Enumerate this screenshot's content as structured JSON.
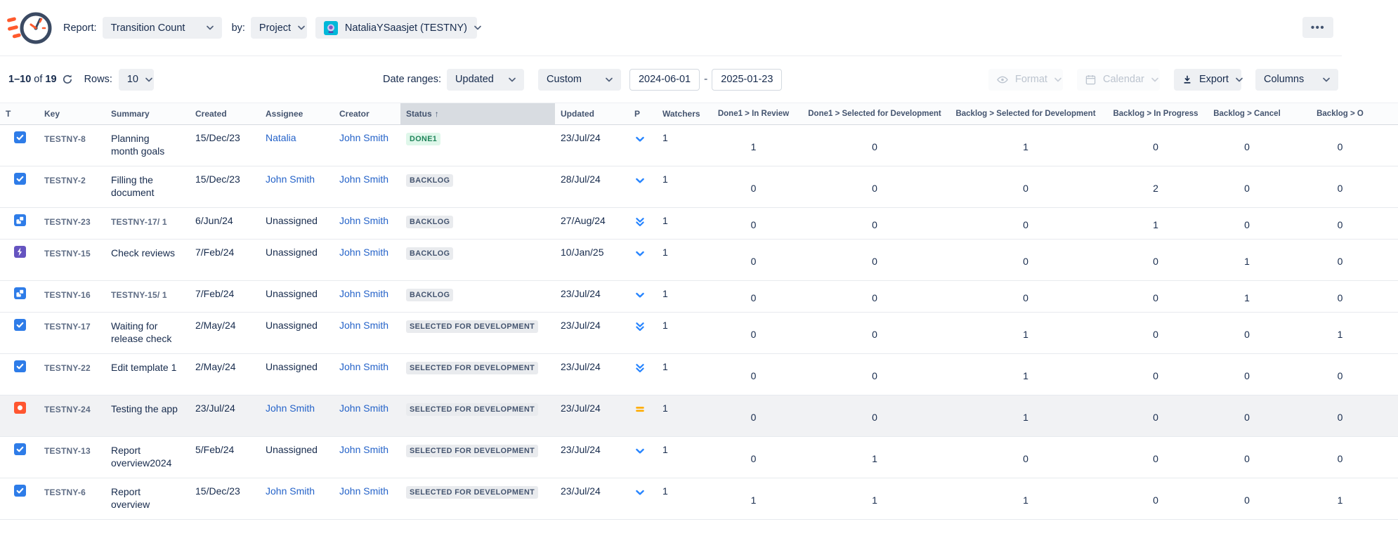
{
  "topbar": {
    "report_label": "Report:",
    "report_value": "Transition Count",
    "by_label": "by:",
    "by_value": "Project",
    "scope_value": "NataliaYSaasjet (TESTNY)",
    "more_dots": "•••"
  },
  "toolbar": {
    "pagination_range": "1–10",
    "pagination_of": "of",
    "pagination_total": "19",
    "rows_label": "Rows:",
    "rows_value": "10",
    "date_ranges_label": "Date ranges:",
    "date_field_value": "Updated",
    "date_mode_value": "Custom",
    "date_from": "2024-06-01",
    "date_separator": "-",
    "date_to": "2025-01-23",
    "format_label": "Format",
    "calendar_label": "Calendar",
    "export_label": "Export",
    "columns_label": "Columns"
  },
  "colors": {
    "accent_blue": "#2684FF",
    "link_blue": "#2563C9",
    "priority_medium_orange": "#FFAB00",
    "bug_red": "#FF5630",
    "epic_purple": "#6554C0",
    "done_green_text": "#1F845A",
    "done_green_bg": "#DFF7EA",
    "neutral_chip_bg": "#E9EBEE",
    "sorted_header_bg": "#D8DCE1"
  },
  "table": {
    "columns": [
      {
        "id": "t",
        "label": "T"
      },
      {
        "id": "key",
        "label": "Key"
      },
      {
        "id": "summary",
        "label": "Summary"
      },
      {
        "id": "created",
        "label": "Created"
      },
      {
        "id": "assignee",
        "label": "Assignee"
      },
      {
        "id": "creator",
        "label": "Creator"
      },
      {
        "id": "status",
        "label": "Status",
        "sorted": "asc"
      },
      {
        "id": "updated",
        "label": "Updated"
      },
      {
        "id": "p",
        "label": "P"
      },
      {
        "id": "watchers",
        "label": "Watchers"
      },
      {
        "id": "v0",
        "label": "Done1 > In Review",
        "align": "center"
      },
      {
        "id": "v1",
        "label": "Done1 > Selected for Development",
        "align": "center"
      },
      {
        "id": "v2",
        "label": "Backlog > Selected for Development",
        "align": "center"
      },
      {
        "id": "v3",
        "label": "Backlog > In Progress",
        "align": "center"
      },
      {
        "id": "v4",
        "label": "Backlog > Cancel",
        "align": "center"
      },
      {
        "id": "v5",
        "label": "Backlog > O",
        "align": "center"
      }
    ],
    "rows": [
      {
        "type_icon": "task-icon",
        "key": "TESTNY-8",
        "summary": "Planning month goals",
        "summary_muted": false,
        "created": "15/Dec/23",
        "assignee": "Natalia",
        "assignee_link": true,
        "creator": "John Smith",
        "status": "DONE1",
        "status_kind": "success",
        "updated": "23/Jul/24",
        "priority_icon": "priority-low-icon",
        "watchers": "1",
        "values": [
          1,
          0,
          1,
          0,
          0,
          0
        ],
        "hovered": false,
        "compact": false
      },
      {
        "type_icon": "task-icon",
        "key": "TESTNY-2",
        "summary": "Filling the document",
        "summary_muted": false,
        "created": "15/Dec/23",
        "assignee": "John Smith",
        "assignee_link": true,
        "creator": "John Smith",
        "status": "BACKLOG",
        "status_kind": "neutral",
        "updated": "28/Jul/24",
        "priority_icon": "priority-low-icon",
        "watchers": "1",
        "values": [
          0,
          0,
          0,
          2,
          0,
          0
        ],
        "hovered": false,
        "compact": false
      },
      {
        "type_icon": "subtask-icon",
        "key": "TESTNY-23",
        "summary": "TESTNY-17/ 1",
        "summary_muted": true,
        "created": "6/Jun/24",
        "assignee": "Unassigned",
        "assignee_link": false,
        "creator": "John Smith",
        "status": "BACKLOG",
        "status_kind": "neutral",
        "updated": "27/Aug/24",
        "priority_icon": "priority-lowest-icon",
        "watchers": "1",
        "values": [
          0,
          0,
          0,
          1,
          0,
          0
        ],
        "hovered": false,
        "compact": true
      },
      {
        "type_icon": "epic-icon",
        "key": "TESTNY-15",
        "summary": "Check reviews",
        "summary_muted": false,
        "created": "7/Feb/24",
        "assignee": "Unassigned",
        "assignee_link": false,
        "creator": "John Smith",
        "status": "BACKLOG",
        "status_kind": "neutral",
        "updated": "10/Jan/25",
        "priority_icon": "priority-low-icon",
        "watchers": "1",
        "values": [
          0,
          0,
          0,
          0,
          1,
          0
        ],
        "hovered": false,
        "compact": false
      },
      {
        "type_icon": "subtask-icon",
        "key": "TESTNY-16",
        "summary": "TESTNY-15/ 1",
        "summary_muted": true,
        "created": "7/Feb/24",
        "assignee": "Unassigned",
        "assignee_link": false,
        "creator": "John Smith",
        "status": "BACKLOG",
        "status_kind": "neutral",
        "updated": "23/Jul/24",
        "priority_icon": "priority-low-icon",
        "watchers": "1",
        "values": [
          0,
          0,
          0,
          0,
          1,
          0
        ],
        "hovered": false,
        "compact": true
      },
      {
        "type_icon": "task-icon",
        "key": "TESTNY-17",
        "summary": "Waiting for release check",
        "summary_muted": false,
        "created": "2/May/24",
        "assignee": "Unassigned",
        "assignee_link": false,
        "creator": "John Smith",
        "status": "SELECTED FOR DEVELOPMENT",
        "status_kind": "neutral",
        "updated": "23/Jul/24",
        "priority_icon": "priority-lowest-icon",
        "watchers": "1",
        "values": [
          0,
          0,
          1,
          0,
          0,
          1
        ],
        "hovered": false,
        "compact": false
      },
      {
        "type_icon": "task-icon",
        "key": "TESTNY-22",
        "summary": "Edit template 1",
        "summary_muted": false,
        "created": "2/May/24",
        "assignee": "Unassigned",
        "assignee_link": false,
        "creator": "John Smith",
        "status": "SELECTED FOR DEVELOPMENT",
        "status_kind": "neutral",
        "updated": "23/Jul/24",
        "priority_icon": "priority-lowest-icon",
        "watchers": "1",
        "values": [
          0,
          0,
          1,
          0,
          0,
          0
        ],
        "hovered": false,
        "compact": false
      },
      {
        "type_icon": "bug-icon",
        "key": "TESTNY-24",
        "summary": "Testing the app",
        "summary_muted": false,
        "created": "23/Jul/24",
        "assignee": "John Smith",
        "assignee_link": true,
        "creator": "John Smith",
        "status": "SELECTED FOR DEVELOPMENT",
        "status_kind": "neutral",
        "updated": "23/Jul/24",
        "priority_icon": "priority-medium-icon",
        "watchers": "1",
        "values": [
          0,
          0,
          1,
          0,
          0,
          0
        ],
        "hovered": true,
        "compact": false
      },
      {
        "type_icon": "task-icon",
        "key": "TESTNY-13",
        "summary": "Report overview2024",
        "summary_muted": false,
        "created": "5/Feb/24",
        "assignee": "Unassigned",
        "assignee_link": false,
        "creator": "John Smith",
        "status": "SELECTED FOR DEVELOPMENT",
        "status_kind": "neutral",
        "updated": "23/Jul/24",
        "priority_icon": "priority-low-icon",
        "watchers": "1",
        "values": [
          0,
          1,
          0,
          0,
          0,
          0
        ],
        "hovered": false,
        "compact": false
      },
      {
        "type_icon": "task-icon",
        "key": "TESTNY-6",
        "summary": "Report overview",
        "summary_muted": false,
        "created": "15/Dec/23",
        "assignee": "John Smith",
        "assignee_link": true,
        "creator": "John Smith",
        "status": "SELECTED FOR DEVELOPMENT",
        "status_kind": "neutral",
        "updated": "23/Jul/24",
        "priority_icon": "priority-low-icon",
        "watchers": "1",
        "values": [
          1,
          1,
          1,
          0,
          0,
          1
        ],
        "hovered": false,
        "compact": false
      }
    ]
  }
}
